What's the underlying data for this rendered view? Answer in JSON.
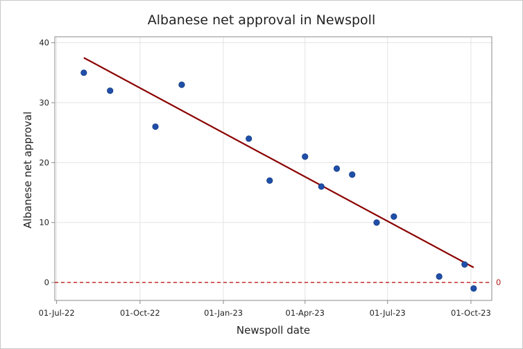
{
  "chart_data": {
    "type": "scatter",
    "title": "Albanese net approval in Newspoll",
    "xlabel": "Newspoll date",
    "ylabel": "Albanese net approval",
    "x_type": "date",
    "xlim": [
      "2022-06-29",
      "2023-10-24"
    ],
    "ylim": [
      -3,
      41
    ],
    "x_ticks": [
      {
        "date": "2022-07-01",
        "label": "01-Jul-22"
      },
      {
        "date": "2022-10-01",
        "label": "01-Oct-22"
      },
      {
        "date": "2023-01-01",
        "label": "01-Jan-23"
      },
      {
        "date": "2023-04-01",
        "label": "01-Apr-23"
      },
      {
        "date": "2023-07-01",
        "label": "01-Jul-23"
      },
      {
        "date": "2023-10-01",
        "label": "01-Oct-23"
      }
    ],
    "y_ticks": [
      0,
      10,
      20,
      30,
      40
    ],
    "grid": true,
    "marker_color": "#1f4fa8",
    "points": [
      {
        "x": "2022-07-31",
        "y": 35
      },
      {
        "x": "2022-08-29",
        "y": 32
      },
      {
        "x": "2022-10-18",
        "y": 26
      },
      {
        "x": "2022-11-16",
        "y": 33
      },
      {
        "x": "2023-01-29",
        "y": 24
      },
      {
        "x": "2023-02-21",
        "y": 17
      },
      {
        "x": "2023-04-01",
        "y": 21
      },
      {
        "x": "2023-04-19",
        "y": 16
      },
      {
        "x": "2023-05-06",
        "y": 19
      },
      {
        "x": "2023-05-23",
        "y": 18
      },
      {
        "x": "2023-06-19",
        "y": 10
      },
      {
        "x": "2023-07-08",
        "y": 11
      },
      {
        "x": "2023-08-27",
        "y": 1
      },
      {
        "x": "2023-09-24",
        "y": 3
      },
      {
        "x": "2023-10-04",
        "y": -1
      }
    ],
    "trendline": {
      "color": "#8b0000",
      "start": {
        "x": "2022-07-31",
        "y": 37.5
      },
      "end": {
        "x": "2023-10-04",
        "y": 2.5
      }
    },
    "reference_line": {
      "y": 0,
      "label": "0",
      "color": "#c00000",
      "style": "dashed"
    }
  }
}
